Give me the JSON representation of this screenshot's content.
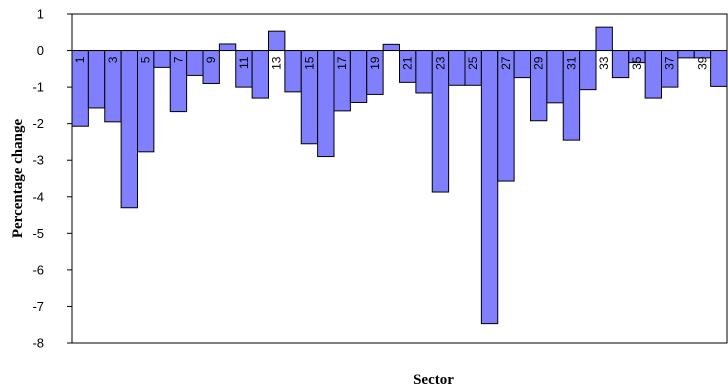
{
  "chart_data": {
    "type": "bar",
    "title": "",
    "xlabel": "Sector",
    "ylabel": "Percentage change",
    "ylim": [
      -8,
      1
    ],
    "yticks": [
      1,
      0,
      -1,
      -2,
      -3,
      -4,
      -5,
      -6,
      -7,
      -8
    ],
    "grid": false,
    "legend": "none",
    "bar_color": "#8080ff",
    "bar_stroke": "#000000",
    "label_every": 2,
    "categories": [
      "1",
      "2",
      "3",
      "4",
      "5",
      "6",
      "7",
      "8",
      "9",
      "10",
      "11",
      "12",
      "13",
      "14",
      "15",
      "16",
      "17",
      "18",
      "19",
      "20",
      "21",
      "22",
      "23",
      "24",
      "25",
      "26",
      "27",
      "28",
      "29",
      "30",
      "31",
      "32",
      "33",
      "34",
      "35",
      "36",
      "37",
      "38",
      "39",
      "40"
    ],
    "values": [
      -2.07,
      -1.57,
      -1.95,
      -4.3,
      -2.77,
      -0.46,
      -1.67,
      -0.68,
      -0.9,
      0.18,
      -1.0,
      -1.3,
      0.53,
      -1.13,
      -2.55,
      -2.9,
      -1.65,
      -1.42,
      -1.2,
      0.17,
      -0.87,
      -1.16,
      -3.87,
      -0.95,
      -0.95,
      -7.47,
      -3.57,
      -0.74,
      -1.92,
      -1.43,
      -2.45,
      -1.07,
      0.64,
      -0.74,
      -0.33,
      -1.3,
      -1.0,
      -0.2,
      -0.2,
      -0.98
    ]
  }
}
